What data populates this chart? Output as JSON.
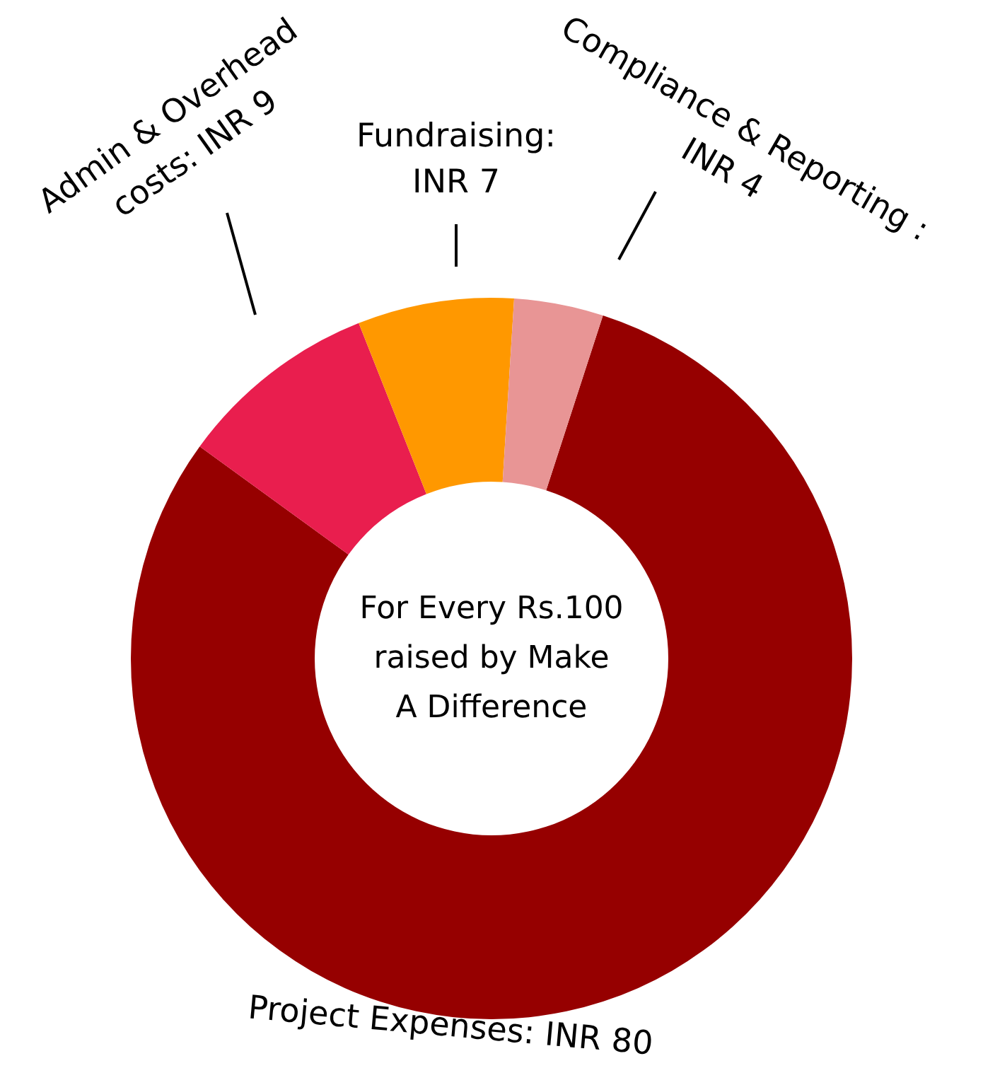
{
  "chart_data": {
    "type": "donut",
    "categories": [
      "Project Expenses: INR 80",
      "Admin & Overhead\ncosts: INR 9",
      "Fundraising:\nINR 7",
      "Compliance & Reporting :\nINR 4"
    ],
    "values": [
      80,
      9,
      7,
      4
    ],
    "colors": [
      "#960000",
      "#e91e4e",
      "#ff9800",
      "#e89595"
    ],
    "annotations": [
      "For Every Rs.100\nraised by Make\nA Difference"
    ],
    "legend": false
  }
}
